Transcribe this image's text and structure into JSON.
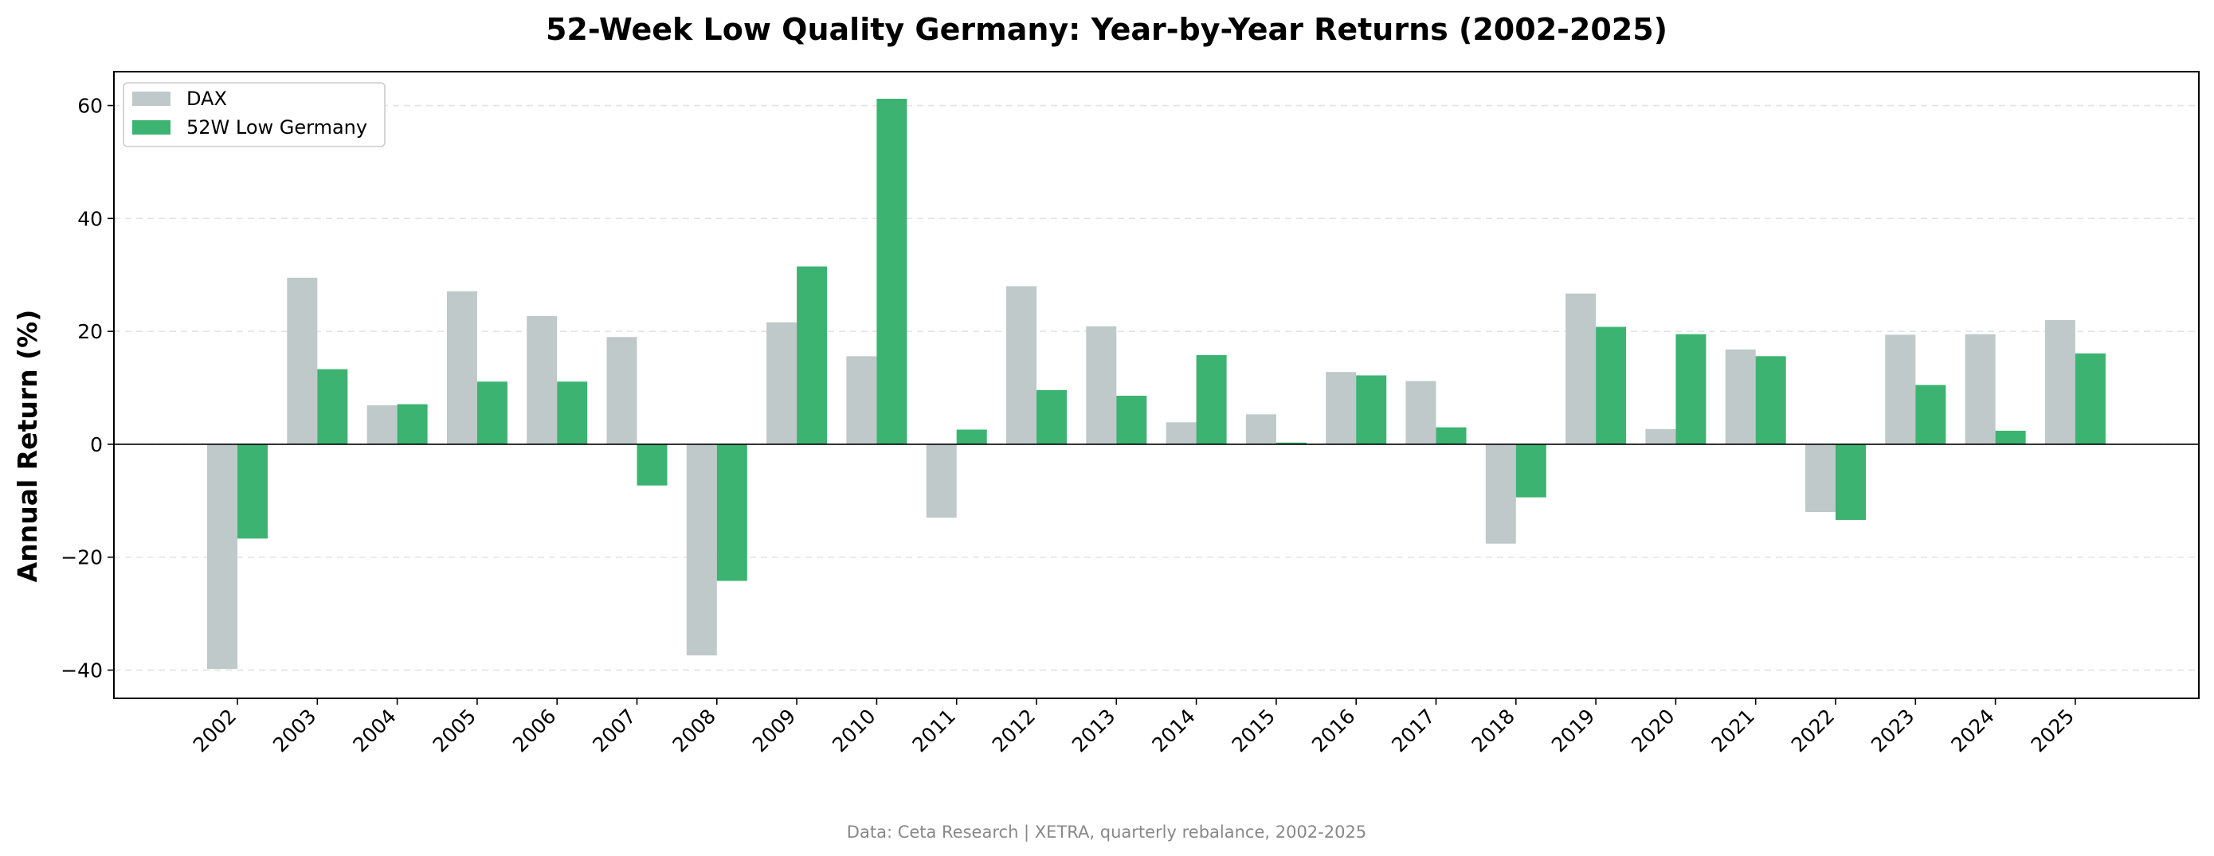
{
  "chart_data": {
    "type": "bar",
    "title": "52-Week Low Quality Germany: Year-by-Year Returns (2002-2025)",
    "xlabel": "",
    "ylabel": "Annual Return (%)",
    "ylim": [
      -45,
      66
    ],
    "yticks": [
      -40,
      -20,
      0,
      20,
      40,
      60
    ],
    "ytick_labels": [
      "−40",
      "−20",
      "0",
      "20",
      "40",
      "60"
    ],
    "grid": "horizontal dashed",
    "legend_position": "top-left",
    "categories": [
      "2002",
      "2003",
      "2004",
      "2005",
      "2006",
      "2007",
      "2008",
      "2009",
      "2010",
      "2011",
      "2012",
      "2013",
      "2014",
      "2015",
      "2016",
      "2017",
      "2018",
      "2019",
      "2020",
      "2021",
      "2022",
      "2023",
      "2024",
      "2025"
    ],
    "series": [
      {
        "name": "DAX",
        "color": "#bfc9c9",
        "values": [
          -39.8,
          29.5,
          6.9,
          27.1,
          22.7,
          19.0,
          -37.4,
          21.6,
          15.6,
          -13.0,
          28.0,
          20.9,
          3.9,
          5.3,
          12.8,
          11.2,
          -17.6,
          26.7,
          2.7,
          16.8,
          -12.0,
          19.4,
          19.5,
          22.0
        ]
      },
      {
        "name": "52W Low Germany",
        "color": "#3cb371",
        "values": [
          -16.7,
          13.3,
          7.1,
          11.1,
          11.1,
          -7.3,
          -24.2,
          31.5,
          61.2,
          2.6,
          9.6,
          8.6,
          15.8,
          0.3,
          12.2,
          3.0,
          -9.4,
          20.8,
          19.5,
          15.6,
          -13.4,
          10.5,
          2.4,
          16.1
        ]
      }
    ]
  },
  "footnote": "Data: Ceta Research | XETRA, quarterly rebalance, 2002-2025"
}
